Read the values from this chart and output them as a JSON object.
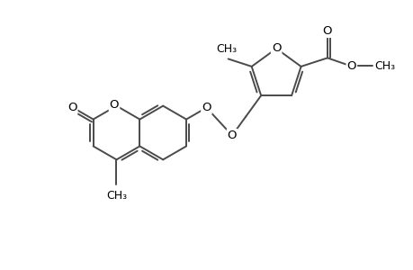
{
  "background": "#ffffff",
  "line_color": "#4a4a4a",
  "line_width": 1.4,
  "font_size": 9.5,
  "fig_width": 4.6,
  "fig_height": 3.0,
  "dpi": 100,
  "xlim": [
    0,
    9.2
  ],
  "ylim": [
    0,
    6.0
  ]
}
